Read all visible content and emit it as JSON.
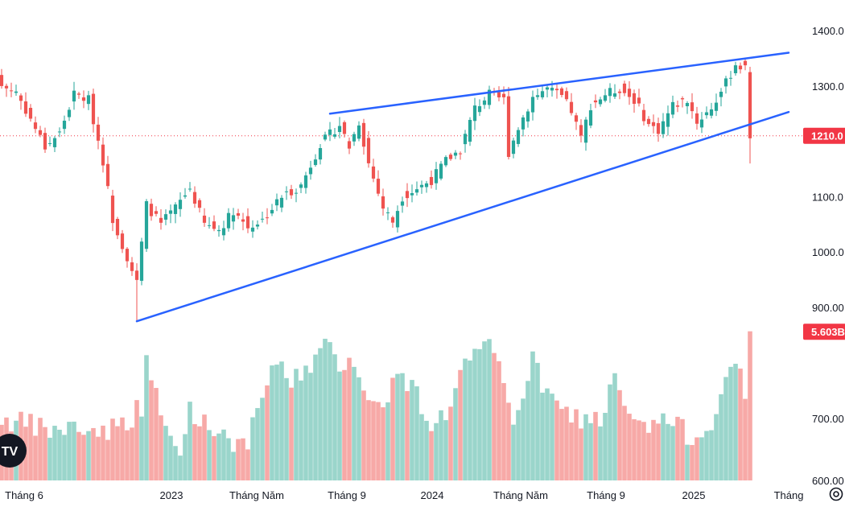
{
  "colors": {
    "up": "#26a69a",
    "down": "#ef5350",
    "vol_up": "#9ad5cb",
    "vol_down": "#f7a9a7",
    "trendline": "#2962ff",
    "price_tag": "#f23645",
    "text": "#131722",
    "price_line": "#f23645"
  },
  "logo": {
    "text": "TV",
    "icon": "tradingview-logo-icon"
  },
  "settings_icon": "gear-icon",
  "chart_data": {
    "type": "candlestick",
    "x_labels": [
      "Tháng 6",
      "2023",
      "Tháng Năm",
      "Tháng 9",
      "2024",
      "Tháng Năm",
      "Tháng 9",
      "2025",
      "Tháng"
    ],
    "price_axis": {
      "ticks": [
        1400,
        1300,
        1100,
        1000,
        900
      ],
      "tick_labels": [
        "1400.0",
        "1300.0",
        "1100.0",
        "1000.0",
        "900.00"
      ],
      "range": [
        850,
        1450
      ]
    },
    "volume_axis": {
      "ticks": [
        700,
        600
      ],
      "tick_labels": [
        "700.00",
        "600.00"
      ],
      "range": [
        585,
        845
      ]
    },
    "last_price": {
      "value": 1210,
      "label": "1210.0"
    },
    "last_volume": {
      "value": 840,
      "label": "5.603B"
    },
    "trendlines": [
      {
        "name": "lower-support",
        "from": {
          "bar": 28,
          "price": 875
        },
        "to": {
          "bar": 163,
          "price": 1253
        }
      },
      {
        "name": "upper-resistance",
        "from": {
          "bar": 68,
          "price": 1250
        },
        "to": {
          "bar": 163,
          "price": 1360
        }
      }
    ],
    "anchors": [
      {
        "bar": 0,
        "price": 1300
      },
      {
        "bar": 3,
        "price": 1290
      },
      {
        "bar": 6,
        "price": 1240
      },
      {
        "bar": 9,
        "price": 1190
      },
      {
        "bar": 12,
        "price": 1215
      },
      {
        "bar": 15,
        "price": 1285
      },
      {
        "bar": 18,
        "price": 1275
      },
      {
        "bar": 21,
        "price": 1165
      },
      {
        "bar": 23,
        "price": 1060
      },
      {
        "bar": 26,
        "price": 990
      },
      {
        "bar": 28,
        "price": 945
      },
      {
        "bar": 30,
        "price": 1085
      },
      {
        "bar": 33,
        "price": 1050
      },
      {
        "bar": 36,
        "price": 1080
      },
      {
        "bar": 39,
        "price": 1115
      },
      {
        "bar": 42,
        "price": 1050
      },
      {
        "bar": 45,
        "price": 1040
      },
      {
        "bar": 48,
        "price": 1075
      },
      {
        "bar": 51,
        "price": 1045
      },
      {
        "bar": 54,
        "price": 1058
      },
      {
        "bar": 58,
        "price": 1100
      },
      {
        "bar": 62,
        "price": 1120
      },
      {
        "bar": 66,
        "price": 1195
      },
      {
        "bar": 70,
        "price": 1230
      },
      {
        "bar": 72,
        "price": 1190
      },
      {
        "bar": 74,
        "price": 1235
      },
      {
        "bar": 76,
        "price": 1160
      },
      {
        "bar": 79,
        "price": 1080
      },
      {
        "bar": 81,
        "price": 1055
      },
      {
        "bar": 83,
        "price": 1100
      },
      {
        "bar": 86,
        "price": 1115
      },
      {
        "bar": 89,
        "price": 1130
      },
      {
        "bar": 92,
        "price": 1165
      },
      {
        "bar": 95,
        "price": 1185
      },
      {
        "bar": 98,
        "price": 1260
      },
      {
        "bar": 101,
        "price": 1285
      },
      {
        "bar": 104,
        "price": 1275
      },
      {
        "bar": 105,
        "price": 1180
      },
      {
        "bar": 107,
        "price": 1225
      },
      {
        "bar": 110,
        "price": 1280
      },
      {
        "bar": 113,
        "price": 1295
      },
      {
        "bar": 116,
        "price": 1280
      },
      {
        "bar": 118,
        "price": 1255
      },
      {
        "bar": 120,
        "price": 1205
      },
      {
        "bar": 122,
        "price": 1265
      },
      {
        "bar": 125,
        "price": 1285
      },
      {
        "bar": 128,
        "price": 1295
      },
      {
        "bar": 131,
        "price": 1275
      },
      {
        "bar": 134,
        "price": 1230
      },
      {
        "bar": 136,
        "price": 1220
      },
      {
        "bar": 139,
        "price": 1265
      },
      {
        "bar": 142,
        "price": 1275
      },
      {
        "bar": 144,
        "price": 1235
      },
      {
        "bar": 147,
        "price": 1260
      },
      {
        "bar": 150,
        "price": 1305
      },
      {
        "bar": 152,
        "price": 1340
      },
      {
        "bar": 154,
        "price": 1330
      },
      {
        "bar": 155,
        "price": 1210
      }
    ],
    "volume_anchors": [
      {
        "bar": 0,
        "volume": 700
      },
      {
        "bar": 5,
        "volume": 690
      },
      {
        "bar": 10,
        "volume": 680
      },
      {
        "bar": 15,
        "volume": 685
      },
      {
        "bar": 20,
        "volume": 680
      },
      {
        "bar": 25,
        "volume": 690
      },
      {
        "bar": 29,
        "volume": 720
      },
      {
        "bar": 30,
        "volume": 810
      },
      {
        "bar": 31,
        "volume": 760
      },
      {
        "bar": 34,
        "volume": 680
      },
      {
        "bar": 37,
        "volume": 640
      },
      {
        "bar": 39,
        "volume": 720
      },
      {
        "bar": 42,
        "volume": 690
      },
      {
        "bar": 46,
        "volume": 680
      },
      {
        "bar": 50,
        "volume": 650
      },
      {
        "bar": 53,
        "volume": 700
      },
      {
        "bar": 56,
        "volume": 790
      },
      {
        "bar": 60,
        "volume": 760
      },
      {
        "bar": 64,
        "volume": 790
      },
      {
        "bar": 67,
        "volume": 815
      },
      {
        "bar": 70,
        "volume": 790
      },
      {
        "bar": 73,
        "volume": 800
      },
      {
        "bar": 76,
        "volume": 720
      },
      {
        "bar": 79,
        "volume": 730
      },
      {
        "bar": 82,
        "volume": 770
      },
      {
        "bar": 86,
        "volume": 740
      },
      {
        "bar": 89,
        "volume": 690
      },
      {
        "bar": 92,
        "volume": 710
      },
      {
        "bar": 96,
        "volume": 790
      },
      {
        "bar": 99,
        "volume": 800
      },
      {
        "bar": 101,
        "volume": 815
      },
      {
        "bar": 103,
        "volume": 780
      },
      {
        "bar": 106,
        "volume": 700
      },
      {
        "bar": 110,
        "volume": 790
      },
      {
        "bar": 113,
        "volume": 740
      },
      {
        "bar": 116,
        "volume": 710
      },
      {
        "bar": 120,
        "volume": 700
      },
      {
        "bar": 124,
        "volume": 700
      },
      {
        "bar": 127,
        "volume": 760
      },
      {
        "bar": 130,
        "volume": 700
      },
      {
        "bar": 133,
        "volume": 680
      },
      {
        "bar": 137,
        "volume": 700
      },
      {
        "bar": 141,
        "volume": 680
      },
      {
        "bar": 144,
        "volume": 670
      },
      {
        "bar": 147,
        "volume": 700
      },
      {
        "bar": 150,
        "volume": 760
      },
      {
        "bar": 153,
        "volume": 780
      },
      {
        "bar": 154,
        "volume": 730
      },
      {
        "bar": 155,
        "volume": 840
      }
    ]
  }
}
